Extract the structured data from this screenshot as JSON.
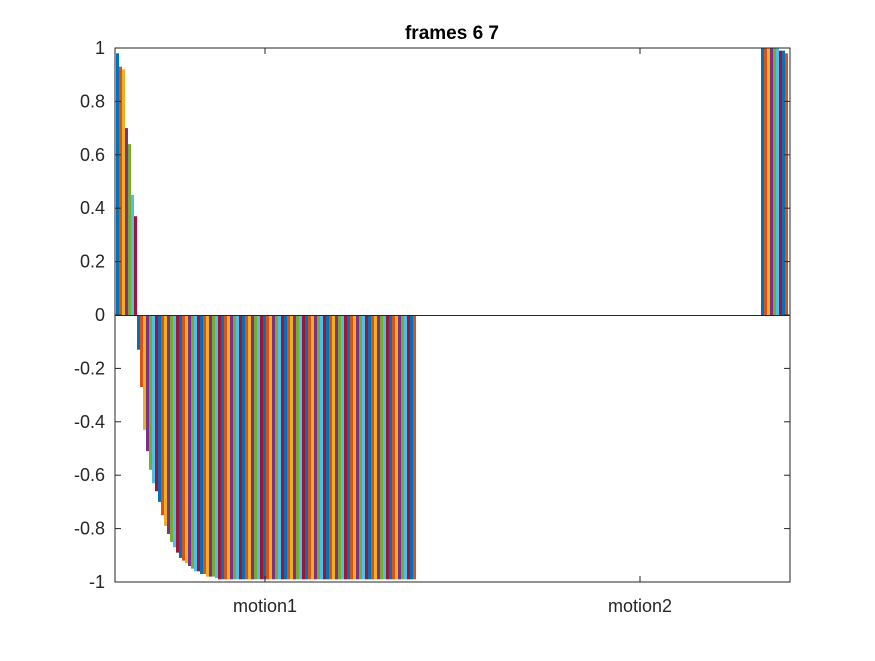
{
  "chart_data": {
    "type": "bar",
    "title": "frames 6 7",
    "xlabel": "",
    "ylabel": "",
    "ylim": [
      -1,
      1
    ],
    "yticks": [
      "-1",
      "-0.8",
      "-0.6",
      "-0.4",
      "-0.2",
      "0",
      "0.2",
      "0.4",
      "0.6",
      "0.8",
      "1"
    ],
    "categories": [
      "motion1",
      "motion2"
    ],
    "grid": false,
    "legend": "none",
    "colors": [
      "#0072BD",
      "#D95319",
      "#EDB120",
      "#7E2F8E",
      "#77AC30",
      "#4DBEEE",
      "#A2142F"
    ],
    "groups": [
      {
        "category": "motion1",
        "values": [
          0.98,
          0.93,
          0.92,
          0.7,
          0.64,
          0.45,
          0.37,
          -0.13,
          -0.27,
          -0.43,
          -0.51,
          -0.58,
          -0.63,
          -0.66,
          -0.7,
          -0.75,
          -0.79,
          -0.82,
          -0.85,
          -0.87,
          -0.89,
          -0.91,
          -0.92,
          -0.93,
          -0.94,
          -0.95,
          -0.96,
          -0.96,
          -0.97,
          -0.97,
          -0.98,
          -0.98,
          -0.98,
          -0.985,
          -0.99,
          -0.99,
          -0.99,
          -0.99,
          -0.99,
          -0.99,
          -0.99,
          -0.99,
          -0.99,
          -0.99,
          -0.99,
          -0.99,
          -0.99,
          -0.99,
          -0.99,
          -0.99,
          -0.99,
          -0.99,
          -0.99,
          -0.99,
          -0.99,
          -0.99,
          -0.99,
          -0.99,
          -0.99,
          -0.99,
          -0.99,
          -0.99,
          -0.99,
          -0.99,
          -0.99,
          -0.99,
          -0.99,
          -0.99,
          -0.99,
          -0.99,
          -0.99,
          -0.99,
          -0.99,
          -0.99,
          -0.99,
          -0.99,
          -0.99,
          -0.99,
          -0.99,
          -0.99,
          -0.99,
          -0.99,
          -0.99,
          -0.99,
          -0.99,
          -0.99,
          -0.99,
          -0.99,
          -0.99,
          -0.99,
          -0.99,
          -0.99,
          -0.99,
          -0.99,
          -0.99,
          -0.99,
          -0.99,
          -0.99,
          -0.99,
          -0.99
        ]
      },
      {
        "category": "motion2",
        "values": [
          1.0,
          1.0,
          1.0,
          1.0,
          1.0,
          1.0,
          0.99,
          0.99,
          0.98,
          0.95,
          0.93,
          0.88,
          0.79
        ]
      }
    ]
  }
}
